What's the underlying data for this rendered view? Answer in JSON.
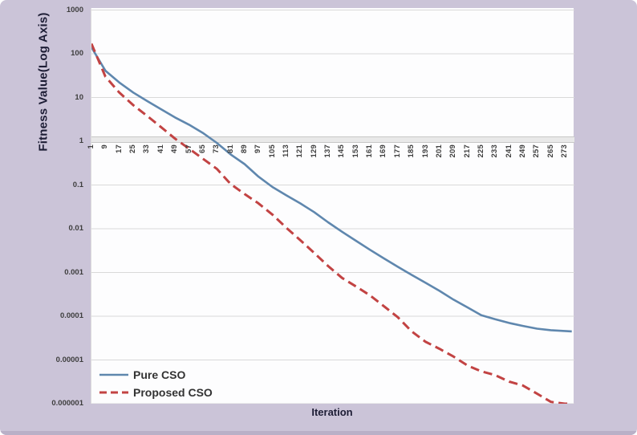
{
  "colors": {
    "background": "#cbc4d8",
    "plot_background": "#fdfdfe",
    "gridline": "#d9d9d9",
    "axis_band": "#e9e9e9",
    "axis_text": "#3e3e3e",
    "title_text": "#1d1d35",
    "pure_cso_blue": "#5f87ae",
    "proposed_cso_red": "#c24343"
  },
  "chart_data": {
    "type": "line",
    "title": "",
    "xlabel": "Iteration",
    "ylabel": "Fitness Value(Log Axis)",
    "y_scale": "log",
    "ylim": [
      1e-06,
      1000
    ],
    "grid": "horizontal",
    "legend_position": "inside-bottom-left",
    "x_axis_cross_value": 1,
    "y_ticks": [
      1000,
      100,
      10,
      1,
      0.1,
      0.01,
      0.001,
      0.0001,
      1e-05,
      1e-06
    ],
    "y_tick_labels": [
      "1000",
      "100",
      "10",
      "1",
      "0.1",
      "0.01",
      "0.001",
      "0.0001",
      "0.00001",
      "0.000001"
    ],
    "x_ticks": [
      1,
      9,
      17,
      25,
      33,
      41,
      49,
      57,
      65,
      73,
      81,
      89,
      97,
      105,
      113,
      121,
      129,
      137,
      145,
      153,
      161,
      169,
      177,
      185,
      193,
      201,
      209,
      217,
      225,
      233,
      241,
      249,
      257,
      265,
      273
    ],
    "x": [
      1,
      9,
      17,
      25,
      33,
      41,
      49,
      57,
      65,
      73,
      81,
      89,
      97,
      105,
      113,
      121,
      129,
      137,
      145,
      153,
      161,
      169,
      177,
      185,
      193,
      201,
      209,
      217,
      225,
      233,
      241,
      249,
      257,
      265,
      273,
      277
    ],
    "series": [
      {
        "name": "Pure CSO",
        "color": "#5f87ae",
        "style": "solid",
        "values": [
          140,
          41,
          22,
          13,
          8.3,
          5.4,
          3.5,
          2.4,
          1.55,
          0.92,
          0.5,
          0.3,
          0.155,
          0.09,
          0.058,
          0.038,
          0.024,
          0.014,
          0.0085,
          0.0053,
          0.0033,
          0.0021,
          0.00135,
          0.00088,
          0.00058,
          0.00038,
          0.00024,
          0.00016,
          0.000105,
          8.5e-05,
          7e-05,
          6e-05,
          5.2e-05,
          4.8e-05,
          4.6e-05,
          4.5e-05
        ]
      },
      {
        "name": "Proposed CSO",
        "color": "#c24343",
        "style": "dashed",
        "values": [
          170,
          30,
          13,
          6.7,
          3.8,
          2.1,
          1.15,
          0.68,
          0.4,
          0.235,
          0.105,
          0.062,
          0.038,
          0.021,
          0.0105,
          0.0055,
          0.0028,
          0.0014,
          0.00075,
          0.00048,
          0.0003,
          0.00017,
          9.5e-05,
          4.5e-05,
          2.6e-05,
          1.8e-05,
          1.2e-05,
          7.5e-06,
          5.5e-06,
          4.5e-06,
          3.2e-06,
          2.6e-06,
          1.7e-06,
          1.1e-06,
          1e-06,
          1e-06
        ]
      }
    ]
  }
}
